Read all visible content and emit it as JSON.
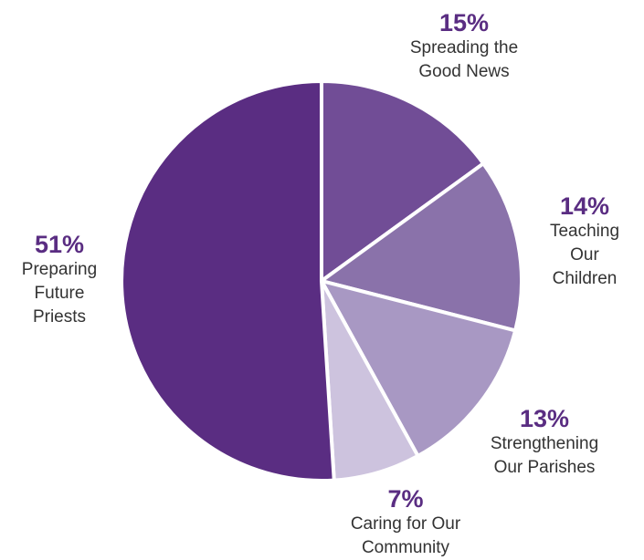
{
  "chart_data": {
    "type": "pie",
    "title": "",
    "slices": [
      {
        "pct_label": "15%",
        "value": 15,
        "label_lines": [
          "Spreading the",
          "Good News"
        ],
        "color": "#714d96"
      },
      {
        "pct_label": "14%",
        "value": 14,
        "label_lines": [
          "Teaching",
          "Our",
          "Children"
        ],
        "color": "#8a72aa"
      },
      {
        "pct_label": "13%",
        "value": 13,
        "label_lines": [
          "Strengthening",
          "Our Parishes"
        ],
        "color": "#a898c3"
      },
      {
        "pct_label": "7%",
        "value": 7,
        "label_lines": [
          "Caring for Our",
          "Community"
        ],
        "color": "#cdc3de"
      },
      {
        "pct_label": "51%",
        "value": 51,
        "label_lines": [
          "Preparing",
          "Future",
          "Priests"
        ],
        "color": "#5a2d82"
      }
    ],
    "percent_color": "#5a2d82",
    "slice_border_color": "#ffffff"
  }
}
